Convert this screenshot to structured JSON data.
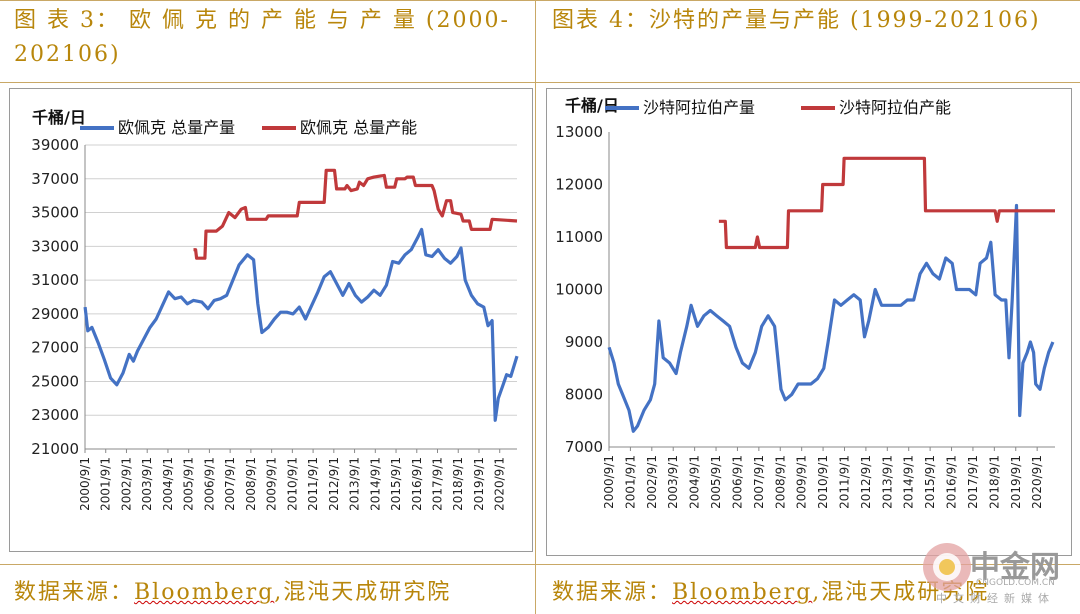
{
  "left_panel": {
    "title": "图 表  3： 欧 佩 克 的 产 能 与 产 量 (2000-202106)",
    "source_prefix": "数据来源：",
    "source_brand": "Bloomberg",
    "source_suffix": ",混沌天成研究院"
  },
  "right_panel": {
    "title": "图表 4：沙特的产量与产能 (1999-202106)",
    "source_prefix": "数据来源：",
    "source_brand": "Bloomberg",
    "source_suffix": ",混沌天成研究院"
  },
  "watermark": {
    "name": "中金网",
    "url": "CNGOLD.COM.CN",
    "sub": "中文财经新媒体"
  },
  "colors": {
    "production": "#4472c4",
    "capacity": "#c0393b",
    "accent": "#b8860b"
  },
  "chart_data": [
    {
      "type": "line",
      "title": "",
      "ylabel": "千桶/日",
      "ylim": [
        21000,
        39000
      ],
      "yticks": [
        21000,
        23000,
        25000,
        27000,
        29000,
        31000,
        33000,
        35000,
        37000,
        39000
      ],
      "xlim": [
        2000.667,
        2021.5
      ],
      "xticks": [
        "2000/9/1",
        "2001/9/1",
        "2002/9/1",
        "2003/9/1",
        "2004/9/1",
        "2005/9/1",
        "2006/9/1",
        "2007/9/1",
        "2008/9/1",
        "2009/9/1",
        "2010/9/1",
        "2011/9/1",
        "2012/9/1",
        "2013/9/1",
        "2014/9/1",
        "2015/9/1",
        "2016/9/1",
        "2017/9/1",
        "2018/9/1",
        "2019/9/1",
        "2020/9/1"
      ],
      "grid": true,
      "legend": "top",
      "series": [
        {
          "name": "欧佩克 总量产量",
          "color_key": "production",
          "points": [
            [
              2000.67,
              29400
            ],
            [
              2000.8,
              28000
            ],
            [
              2001.0,
              28200
            ],
            [
              2001.3,
              27300
            ],
            [
              2001.6,
              26300
            ],
            [
              2001.9,
              25200
            ],
            [
              2002.2,
              24800
            ],
            [
              2002.5,
              25500
            ],
            [
              2002.8,
              26600
            ],
            [
              2003.0,
              26200
            ],
            [
              2003.2,
              26800
            ],
            [
              2003.5,
              27500
            ],
            [
              2003.8,
              28200
            ],
            [
              2004.1,
              28700
            ],
            [
              2004.4,
              29500
            ],
            [
              2004.7,
              30300
            ],
            [
              2005.0,
              29900
            ],
            [
              2005.3,
              30000
            ],
            [
              2005.6,
              29600
            ],
            [
              2005.9,
              29800
            ],
            [
              2006.3,
              29700
            ],
            [
              2006.6,
              29300
            ],
            [
              2006.9,
              29800
            ],
            [
              2007.2,
              29900
            ],
            [
              2007.5,
              30100
            ],
            [
              2007.8,
              31000
            ],
            [
              2008.1,
              31900
            ],
            [
              2008.5,
              32500
            ],
            [
              2008.8,
              32200
            ],
            [
              2009.0,
              29600
            ],
            [
              2009.2,
              27900
            ],
            [
              2009.5,
              28200
            ],
            [
              2009.8,
              28700
            ],
            [
              2010.1,
              29100
            ],
            [
              2010.4,
              29100
            ],
            [
              2010.7,
              29000
            ],
            [
              2011.0,
              29400
            ],
            [
              2011.3,
              28700
            ],
            [
              2011.6,
              29500
            ],
            [
              2011.9,
              30300
            ],
            [
              2012.2,
              31200
            ],
            [
              2012.5,
              31500
            ],
            [
              2012.8,
              30800
            ],
            [
              2013.1,
              30100
            ],
            [
              2013.4,
              30800
            ],
            [
              2013.7,
              30100
            ],
            [
              2014.0,
              29700
            ],
            [
              2014.3,
              30000
            ],
            [
              2014.6,
              30400
            ],
            [
              2014.9,
              30100
            ],
            [
              2015.2,
              30700
            ],
            [
              2015.5,
              32100
            ],
            [
              2015.8,
              32000
            ],
            [
              2016.1,
              32500
            ],
            [
              2016.4,
              32800
            ],
            [
              2016.7,
              33500
            ],
            [
              2016.9,
              34000
            ],
            [
              2017.1,
              32500
            ],
            [
              2017.4,
              32400
            ],
            [
              2017.7,
              32800
            ],
            [
              2018.0,
              32300
            ],
            [
              2018.3,
              32000
            ],
            [
              2018.6,
              32400
            ],
            [
              2018.8,
              32900
            ],
            [
              2019.0,
              31000
            ],
            [
              2019.3,
              30100
            ],
            [
              2019.6,
              29600
            ],
            [
              2019.9,
              29400
            ],
            [
              2020.1,
              28300
            ],
            [
              2020.3,
              28600
            ],
            [
              2020.45,
              22700
            ],
            [
              2020.6,
              24000
            ],
            [
              2020.8,
              24700
            ],
            [
              2021.0,
              25400
            ],
            [
              2021.2,
              25300
            ],
            [
              2021.5,
              26500
            ]
          ]
        },
        {
          "name": "欧佩克 总量产能",
          "color_key": "capacity",
          "points": [
            [
              2005.9,
              32800
            ],
            [
              2006.0,
              32800
            ],
            [
              2006.05,
              32300
            ],
            [
              2006.45,
              32300
            ],
            [
              2006.5,
              33900
            ],
            [
              2007.0,
              33900
            ],
            [
              2007.3,
              34200
            ],
            [
              2007.6,
              35000
            ],
            [
              2007.9,
              34700
            ],
            [
              2008.2,
              35200
            ],
            [
              2008.4,
              35300
            ],
            [
              2008.5,
              34600
            ],
            [
              2009.4,
              34600
            ],
            [
              2009.5,
              34800
            ],
            [
              2010.9,
              34800
            ],
            [
              2011.0,
              35600
            ],
            [
              2012.2,
              35600
            ],
            [
              2012.3,
              37500
            ],
            [
              2012.7,
              37500
            ],
            [
              2012.8,
              36400
            ],
            [
              2013.2,
              36400
            ],
            [
              2013.3,
              36600
            ],
            [
              2013.5,
              36300
            ],
            [
              2013.8,
              36400
            ],
            [
              2013.9,
              36800
            ],
            [
              2014.1,
              36600
            ],
            [
              2014.3,
              37000
            ],
            [
              2014.6,
              37100
            ],
            [
              2015.1,
              37200
            ],
            [
              2015.2,
              36500
            ],
            [
              2015.6,
              36500
            ],
            [
              2015.7,
              37000
            ],
            [
              2016.1,
              37000
            ],
            [
              2016.2,
              37100
            ],
            [
              2016.5,
              37100
            ],
            [
              2016.6,
              36600
            ],
            [
              2017.4,
              36600
            ],
            [
              2017.5,
              36300
            ],
            [
              2017.7,
              35200
            ],
            [
              2017.9,
              34800
            ],
            [
              2018.1,
              35700
            ],
            [
              2018.3,
              35700
            ],
            [
              2018.4,
              35000
            ],
            [
              2018.8,
              34900
            ],
            [
              2018.9,
              34500
            ],
            [
              2019.2,
              34500
            ],
            [
              2019.3,
              34000
            ],
            [
              2020.2,
              34000
            ],
            [
              2020.3,
              34600
            ],
            [
              2021.5,
              34500
            ]
          ]
        }
      ]
    },
    {
      "type": "line",
      "title": "",
      "ylabel": "千桶/日",
      "ylim": [
        7000,
        13000
      ],
      "yticks": [
        7000,
        8000,
        9000,
        10000,
        11000,
        12000,
        13000
      ],
      "xlim": [
        2000.667,
        2021.5
      ],
      "xticks": [
        "2000/9/1",
        "2001/9/1",
        "2002/9/1",
        "2003/9/1",
        "2004/9/1",
        "2005/9/1",
        "2006/9/1",
        "2007/9/1",
        "2008/9/1",
        "2009/9/1",
        "2010/9/1",
        "2011/9/1",
        "2012/9/1",
        "2013/9/1",
        "2014/9/1",
        "2015/9/1",
        "2016/9/1",
        "2017/9/1",
        "2018/9/1",
        "2019/9/1",
        "2020/9/1"
      ],
      "grid": false,
      "legend": "top",
      "series": [
        {
          "name": "沙特阿拉伯产量",
          "color_key": "production",
          "points": [
            [
              2000.67,
              8900
            ],
            [
              2000.9,
              8600
            ],
            [
              2001.1,
              8200
            ],
            [
              2001.3,
              8000
            ],
            [
              2001.6,
              7700
            ],
            [
              2001.8,
              7300
            ],
            [
              2002.0,
              7400
            ],
            [
              2002.3,
              7700
            ],
            [
              2002.6,
              7900
            ],
            [
              2002.8,
              8200
            ],
            [
              2003.0,
              9400
            ],
            [
              2003.2,
              8700
            ],
            [
              2003.5,
              8600
            ],
            [
              2003.8,
              8400
            ],
            [
              2004.0,
              8800
            ],
            [
              2004.3,
              9300
            ],
            [
              2004.5,
              9700
            ],
            [
              2004.8,
              9300
            ],
            [
              2005.1,
              9500
            ],
            [
              2005.4,
              9600
            ],
            [
              2005.7,
              9500
            ],
            [
              2006.0,
              9400
            ],
            [
              2006.3,
              9300
            ],
            [
              2006.6,
              8900
            ],
            [
              2006.9,
              8600
            ],
            [
              2007.2,
              8500
            ],
            [
              2007.5,
              8800
            ],
            [
              2007.8,
              9300
            ],
            [
              2008.1,
              9500
            ],
            [
              2008.4,
              9300
            ],
            [
              2008.7,
              8100
            ],
            [
              2008.9,
              7900
            ],
            [
              2009.2,
              8000
            ],
            [
              2009.5,
              8200
            ],
            [
              2009.8,
              8200
            ],
            [
              2010.1,
              8200
            ],
            [
              2010.4,
              8300
            ],
            [
              2010.7,
              8500
            ],
            [
              2010.9,
              9000
            ],
            [
              2011.2,
              9800
            ],
            [
              2011.5,
              9700
            ],
            [
              2011.8,
              9800
            ],
            [
              2012.1,
              9900
            ],
            [
              2012.4,
              9800
            ],
            [
              2012.6,
              9100
            ],
            [
              2012.8,
              9400
            ],
            [
              2013.1,
              10000
            ],
            [
              2013.4,
              9700
            ],
            [
              2013.7,
              9700
            ],
            [
              2014.0,
              9700
            ],
            [
              2014.3,
              9700
            ],
            [
              2014.6,
              9800
            ],
            [
              2014.9,
              9800
            ],
            [
              2015.2,
              10300
            ],
            [
              2015.5,
              10500
            ],
            [
              2015.8,
              10300
            ],
            [
              2016.1,
              10200
            ],
            [
              2016.4,
              10600
            ],
            [
              2016.7,
              10500
            ],
            [
              2016.9,
              10000
            ],
            [
              2017.2,
              10000
            ],
            [
              2017.5,
              10000
            ],
            [
              2017.8,
              9900
            ],
            [
              2018.0,
              10500
            ],
            [
              2018.3,
              10600
            ],
            [
              2018.5,
              10900
            ],
            [
              2018.7,
              9900
            ],
            [
              2019.0,
              9800
            ],
            [
              2019.2,
              9800
            ],
            [
              2019.35,
              8700
            ],
            [
              2019.5,
              9800
            ],
            [
              2019.7,
              11600
            ],
            [
              2019.85,
              7600
            ],
            [
              2020.0,
              8600
            ],
            [
              2020.2,
              8800
            ],
            [
              2020.35,
              9000
            ],
            [
              2020.5,
              8800
            ],
            [
              2020.6,
              8200
            ],
            [
              2020.8,
              8100
            ],
            [
              2021.0,
              8500
            ],
            [
              2021.2,
              8800
            ],
            [
              2021.4,
              9000
            ]
          ]
        },
        {
          "name": "沙特阿拉伯产能",
          "color_key": "capacity",
          "points": [
            [
              2005.8,
              11300
            ],
            [
              2006.1,
              11300
            ],
            [
              2006.15,
              10800
            ],
            [
              2007.5,
              10800
            ],
            [
              2007.6,
              11000
            ],
            [
              2007.7,
              10800
            ],
            [
              2009.0,
              10800
            ],
            [
              2009.05,
              11500
            ],
            [
              2010.6,
              11500
            ],
            [
              2010.65,
              12000
            ],
            [
              2011.6,
              12000
            ],
            [
              2011.65,
              12500
            ],
            [
              2015.4,
              12500
            ],
            [
              2015.45,
              11500
            ],
            [
              2018.7,
              11500
            ],
            [
              2018.8,
              11300
            ],
            [
              2018.9,
              11500
            ],
            [
              2021.5,
              11500
            ]
          ]
        }
      ]
    }
  ]
}
